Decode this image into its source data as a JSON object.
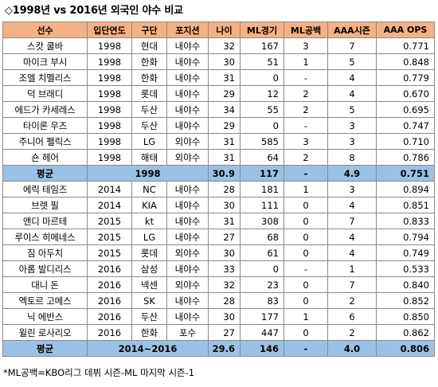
{
  "title": "◇1998년 vs 2016년 외국인 야수 비교",
  "headers": [
    "선수",
    "입단연도",
    "구단",
    "포지션",
    "나이",
    "ML경기",
    "ML공백",
    "AAA시즌",
    "AAA OPS"
  ],
  "group1": [
    {
      "name": "스캇 쿨바",
      "year": "1998",
      "team": "현대",
      "pos": "내야수",
      "age": "32",
      "ml_games": "167",
      "ml_gap": "3",
      "aaa_seasons": "7",
      "aaa_ops": "0.771"
    },
    {
      "name": "마이크 부시",
      "year": "1998",
      "team": "한화",
      "pos": "내야수",
      "age": "30",
      "ml_games": "51",
      "ml_gap": "1",
      "aaa_seasons": "5",
      "aaa_ops": "0.848"
    },
    {
      "name": "조엘 치멜리스",
      "year": "1998",
      "team": "한화",
      "pos": "내야수",
      "age": "31",
      "ml_games": "0",
      "ml_gap": "-",
      "aaa_seasons": "4",
      "aaa_ops": "0.779"
    },
    {
      "name": "덕 브래디",
      "year": "1998",
      "team": "롯데",
      "pos": "내야수",
      "age": "29",
      "ml_games": "12",
      "ml_gap": "2",
      "aaa_seasons": "4",
      "aaa_ops": "0.670"
    },
    {
      "name": "에드가 카세레스",
      "year": "1998",
      "team": "두산",
      "pos": "내야수",
      "age": "34",
      "ml_games": "55",
      "ml_gap": "2",
      "aaa_seasons": "5",
      "aaa_ops": "0.695"
    },
    {
      "name": "타이론 우즈",
      "year": "1998",
      "team": "두산",
      "pos": "내야수",
      "age": "29",
      "ml_games": "0",
      "ml_gap": "-",
      "aaa_seasons": "3",
      "aaa_ops": "0.747"
    },
    {
      "name": "주니어 펠릭스",
      "year": "1998",
      "team": "LG",
      "pos": "외야수",
      "age": "31",
      "ml_games": "585",
      "ml_gap": "3",
      "aaa_seasons": "3",
      "aaa_ops": "0.710"
    },
    {
      "name": "숀 헤어",
      "year": "1998",
      "team": "해태",
      "pos": "외야수",
      "age": "31",
      "ml_games": "64",
      "ml_gap": "2",
      "aaa_seasons": "8",
      "aaa_ops": "0.786"
    }
  ],
  "avg1": {
    "label": "평균",
    "year": "1998",
    "age": "30.9",
    "ml_games": "117",
    "ml_gap": "-",
    "aaa_seasons": "4.9",
    "aaa_ops": "0.751"
  },
  "group2": [
    {
      "name": "에릭 테임즈",
      "year": "2014",
      "team": "NC",
      "pos": "내야수",
      "age": "28",
      "ml_games": "181",
      "ml_gap": "1",
      "aaa_seasons": "3",
      "aaa_ops": "0.894"
    },
    {
      "name": "브렛 필",
      "year": "2014",
      "team": "KIA",
      "pos": "내야수",
      "age": "30",
      "ml_games": "111",
      "ml_gap": "0",
      "aaa_seasons": "4",
      "aaa_ops": "0.851"
    },
    {
      "name": "앤디 마르테",
      "year": "2015",
      "team": "kt",
      "pos": "내야수",
      "age": "31",
      "ml_games": "308",
      "ml_gap": "0",
      "aaa_seasons": "7",
      "aaa_ops": "0.833"
    },
    {
      "name": "루이스 히메네스",
      "year": "2015",
      "team": "LG",
      "pos": "내야수",
      "age": "27",
      "ml_games": "68",
      "ml_gap": "0",
      "aaa_seasons": "4",
      "aaa_ops": "0.794"
    },
    {
      "name": "짐 아두치",
      "year": "2015",
      "team": "롯데",
      "pos": "외야수",
      "age": "30",
      "ml_games": "61",
      "ml_gap": "0",
      "aaa_seasons": "4",
      "aaa_ops": "0.749"
    },
    {
      "name": "아롬 발디리스",
      "year": "2016",
      "team": "삼성",
      "pos": "내야수",
      "age": "33",
      "ml_games": "0",
      "ml_gap": "-",
      "aaa_seasons": "1",
      "aaa_ops": "0.533"
    },
    {
      "name": "대니 돈",
      "year": "2016",
      "team": "넥센",
      "pos": "외야수",
      "age": "32",
      "ml_games": "23",
      "ml_gap": "0",
      "aaa_seasons": "7",
      "aaa_ops": "0.840"
    },
    {
      "name": "엑토르 고메스",
      "year": "2016",
      "team": "SK",
      "pos": "내야수",
      "age": "28",
      "ml_games": "83",
      "ml_gap": "0",
      "aaa_seasons": "2",
      "aaa_ops": "0.852"
    },
    {
      "name": "닉 에반스",
      "year": "2016",
      "team": "두산",
      "pos": "내야수",
      "age": "30",
      "ml_games": "177",
      "ml_gap": "1",
      "aaa_seasons": "6",
      "aaa_ops": "0.850"
    },
    {
      "name": "윌린 로사리오",
      "year": "2016",
      "team": "한화",
      "pos": "포수",
      "age": "27",
      "ml_games": "447",
      "ml_gap": "0",
      "aaa_seasons": "2",
      "aaa_ops": "0.862"
    }
  ],
  "avg2": {
    "label": "평균",
    "year": "2014~2016",
    "age": "29.6",
    "ml_games": "146",
    "ml_gap": "-",
    "aaa_seasons": "4.0",
    "aaa_ops": "0.806"
  },
  "footnote": "*ML공백=KBO리그 데뷔 시즌-ML 마지막 시즌-1",
  "colors": {
    "header_bg": "#f4b183",
    "avg_bg": "#9bc2e6",
    "border": "#8a8a8a"
  }
}
